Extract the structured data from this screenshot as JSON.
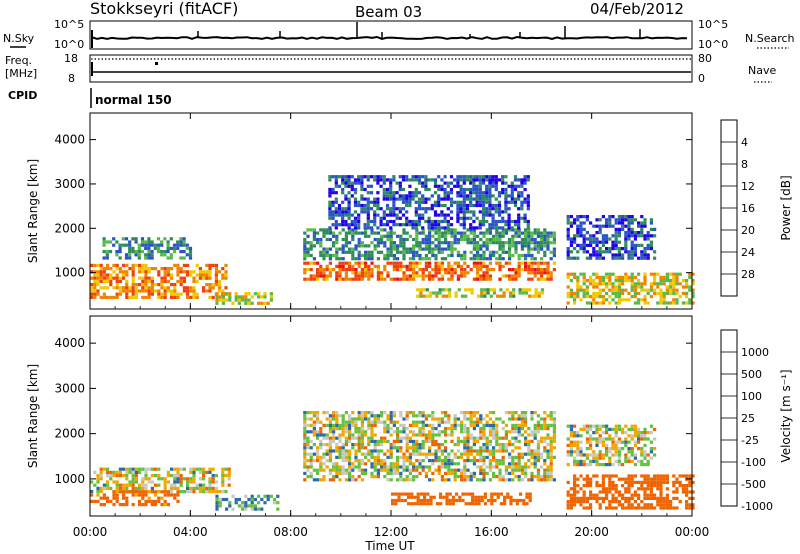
{
  "header": {
    "station": "Stokkseyri (fitACF)",
    "beam": "Beam 03",
    "date": "04/Feb/2012"
  },
  "noise_panel": {
    "left_label": "N.Sky",
    "right_label": "N.Search",
    "tick_top": "10^5",
    "tick_bottom": "10^0"
  },
  "freq_panel": {
    "left_label_1": "Freq.",
    "left_label_2": "[MHz]",
    "left_ticks": [
      "18",
      "8"
    ],
    "right_label": "Nave",
    "right_ticks": [
      "80",
      "0"
    ]
  },
  "cpid_panel": {
    "label": "CPID",
    "mode": "normal 150"
  },
  "time_axis": {
    "label": "Time UT",
    "ticks": [
      "00:00",
      "04:00",
      "08:00",
      "12:00",
      "16:00",
      "20:00",
      "00:00"
    ]
  },
  "chart_data": [
    {
      "type": "heatmap",
      "title": "",
      "xlabel": "Time UT",
      "ylabel": "Slant Range [km]",
      "x_range_hours": [
        0,
        24
      ],
      "ylim": [
        180,
        4600
      ],
      "y_ticks": [
        1000,
        2000,
        3000,
        4000
      ],
      "colorbar": {
        "label": "Power [dB]",
        "ticks": [
          "4",
          "8",
          "12",
          "16",
          "20",
          "24",
          "28"
        ],
        "colors": [
          "#2200ee",
          "#2b54c8",
          "#2e8c5a",
          "#58b84a",
          "#f2c800",
          "#f08400",
          "#f04010",
          "#ee1010"
        ]
      },
      "echo_regions": [
        {
          "t_start": 0.0,
          "t_end": 5.4,
          "range_min": 420,
          "range_max": 1200,
          "power_db": 22
        },
        {
          "t_start": 0.5,
          "t_end": 4.0,
          "range_min": 1300,
          "range_max": 1800,
          "power_db": 10
        },
        {
          "t_start": 5.0,
          "t_end": 7.2,
          "range_min": 300,
          "range_max": 560,
          "power_db": 18
        },
        {
          "t_start": 8.5,
          "t_end": 18.5,
          "range_min": 850,
          "range_max": 1250,
          "power_db": 24
        },
        {
          "t_start": 8.5,
          "t_end": 18.5,
          "range_min": 1300,
          "range_max": 2000,
          "power_db": 10
        },
        {
          "t_start": 9.5,
          "t_end": 17.5,
          "range_min": 2000,
          "range_max": 3200,
          "power_db": 6
        },
        {
          "t_start": 13.0,
          "t_end": 18.0,
          "range_min": 450,
          "range_max": 650,
          "power_db": 16
        },
        {
          "t_start": 19.0,
          "t_end": 24.0,
          "range_min": 300,
          "range_max": 1000,
          "power_db": 18
        },
        {
          "t_start": 19.0,
          "t_end": 22.5,
          "range_min": 1300,
          "range_max": 2300,
          "power_db": 6
        }
      ]
    },
    {
      "type": "heatmap",
      "title": "",
      "xlabel": "Time UT",
      "ylabel": "Slant Range [km]",
      "x_range_hours": [
        0,
        24
      ],
      "ylim": [
        180,
        4600
      ],
      "y_ticks": [
        1000,
        2000,
        3000,
        4000
      ],
      "colorbar": {
        "label": "Velocity [m s^-1]",
        "ticks": [
          "1000",
          "500",
          "100",
          "25",
          "-25",
          "-100",
          "-500",
          "-1000"
        ],
        "colors": [
          "#2233bb",
          "#2a6aa8",
          "#3a8c5a",
          "#64c040",
          "#c8c8c0",
          "#f0a800",
          "#f06400",
          "#e81c10"
        ]
      },
      "echo_regions": [
        {
          "t_start": 0.0,
          "t_end": 5.5,
          "range_min": 750,
          "range_max": 1250,
          "velocity_ms": 0
        },
        {
          "t_start": 0.0,
          "t_end": 3.5,
          "range_min": 400,
          "range_max": 750,
          "velocity_ms": -200
        },
        {
          "t_start": 5.0,
          "t_end": 7.5,
          "range_min": 300,
          "range_max": 650,
          "velocity_ms": 120
        },
        {
          "t_start": 8.5,
          "t_end": 18.5,
          "range_min": 1000,
          "range_max": 2500,
          "velocity_ms": 0
        },
        {
          "t_start": 12.0,
          "t_end": 17.5,
          "range_min": 450,
          "range_max": 700,
          "velocity_ms": -300
        },
        {
          "t_start": 19.0,
          "t_end": 24.0,
          "range_min": 350,
          "range_max": 1100,
          "velocity_ms": -300
        },
        {
          "t_start": 19.0,
          "t_end": 22.5,
          "range_min": 1300,
          "range_max": 2200,
          "velocity_ms": 0
        }
      ]
    }
  ]
}
